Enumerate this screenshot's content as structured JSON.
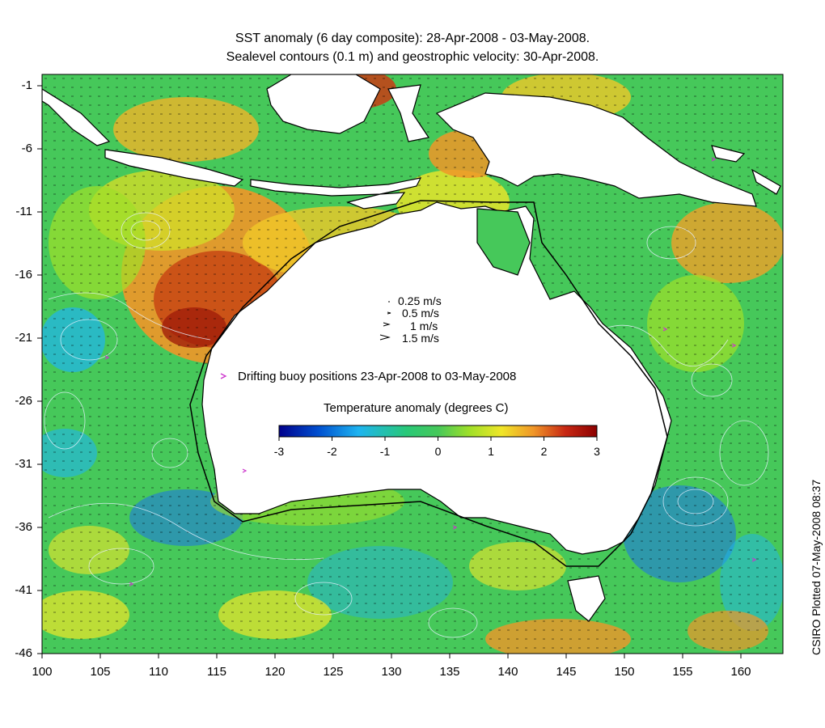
{
  "header": {
    "title_line1": "SST anomaly (6 day composite): 28-Apr-2008 - 03-May-2008.",
    "title_line2": "Sealevel contours (0.1 m) and geostrophic velocity: 30-Apr-2008."
  },
  "credit": "CSIRO Plotted 07-May-2008 08:37",
  "axes": {
    "x_ticks": [
      "100",
      "105",
      "110",
      "115",
      "120",
      "125",
      "130",
      "135",
      "140",
      "145",
      "150",
      "155",
      "160"
    ],
    "y_ticks": [
      "-1",
      "-6",
      "-11",
      "-16",
      "-21",
      "-26",
      "-31",
      "-36",
      "-41",
      "-46"
    ],
    "lon_range": [
      100,
      164
    ],
    "lat_range": [
      -46,
      0
    ]
  },
  "velocity_legend": [
    {
      "label": "0.25 m/s"
    },
    {
      "label": "0.5 m/s"
    },
    {
      "label": "1 m/s"
    },
    {
      "label": "1.5 m/s"
    }
  ],
  "buoy_legend": {
    "marker": ">",
    "label": "Drifting buoy positions 23-Apr-2008 to 03-May-2008",
    "color": "#cc33cc"
  },
  "colorbar": {
    "title": "Temperature anomaly (degrees C)",
    "ticks": [
      "-3",
      "-2",
      "-1",
      "0",
      "1",
      "2",
      "3"
    ],
    "range": [
      -3,
      3
    ],
    "colors": [
      "#00008c",
      "#0050d0",
      "#1eb4f0",
      "#28c878",
      "#78e028",
      "#f0e628",
      "#f09628",
      "#c82814",
      "#8c0000"
    ]
  },
  "map": {
    "ocean_base_color": "#46c85a",
    "land_color": "#ffffff",
    "coast_color": "#000000",
    "contour_color": "#e8f0ff"
  }
}
